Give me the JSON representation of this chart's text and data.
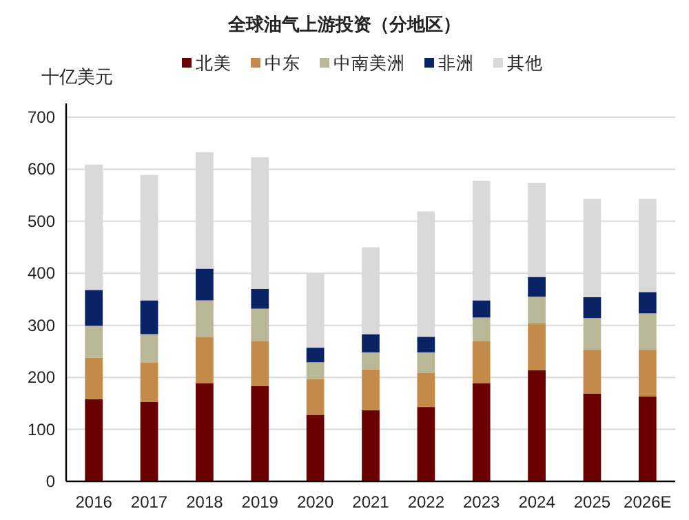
{
  "chart_data": {
    "type": "bar",
    "title": "全球油气上游投资（分地区）",
    "ylabel": "十亿美元",
    "categories": [
      "2016",
      "2017",
      "2018",
      "2019",
      "2020",
      "2021",
      "2022",
      "2023",
      "2024",
      "2025",
      "2026E"
    ],
    "stacked": true,
    "series": [
      {
        "name": "北美",
        "color": "#6b0000",
        "values": [
          158,
          153,
          189,
          183,
          128,
          137,
          143,
          189,
          214,
          169,
          163
        ]
      },
      {
        "name": "中东",
        "color": "#c48a4a",
        "values": [
          80,
          75,
          89,
          87,
          69,
          78,
          66,
          81,
          90,
          84,
          90
        ]
      },
      {
        "name": "中南美洲",
        "color": "#b9b795",
        "values": [
          61,
          55,
          70,
          62,
          32,
          33,
          39,
          45,
          51,
          61,
          70
        ]
      },
      {
        "name": "非洲",
        "color": "#0a2266",
        "values": [
          69,
          65,
          61,
          38,
          28,
          35,
          30,
          33,
          38,
          40,
          41
        ]
      },
      {
        "name": "其他",
        "color": "#d9d9d9",
        "values": [
          241,
          241,
          224,
          253,
          143,
          167,
          241,
          230,
          181,
          189,
          179
        ]
      }
    ],
    "ylim": [
      0,
      700
    ],
    "yticks": [
      0,
      100,
      200,
      300,
      400,
      500,
      600,
      700
    ],
    "grid": "y",
    "legend": "top"
  }
}
